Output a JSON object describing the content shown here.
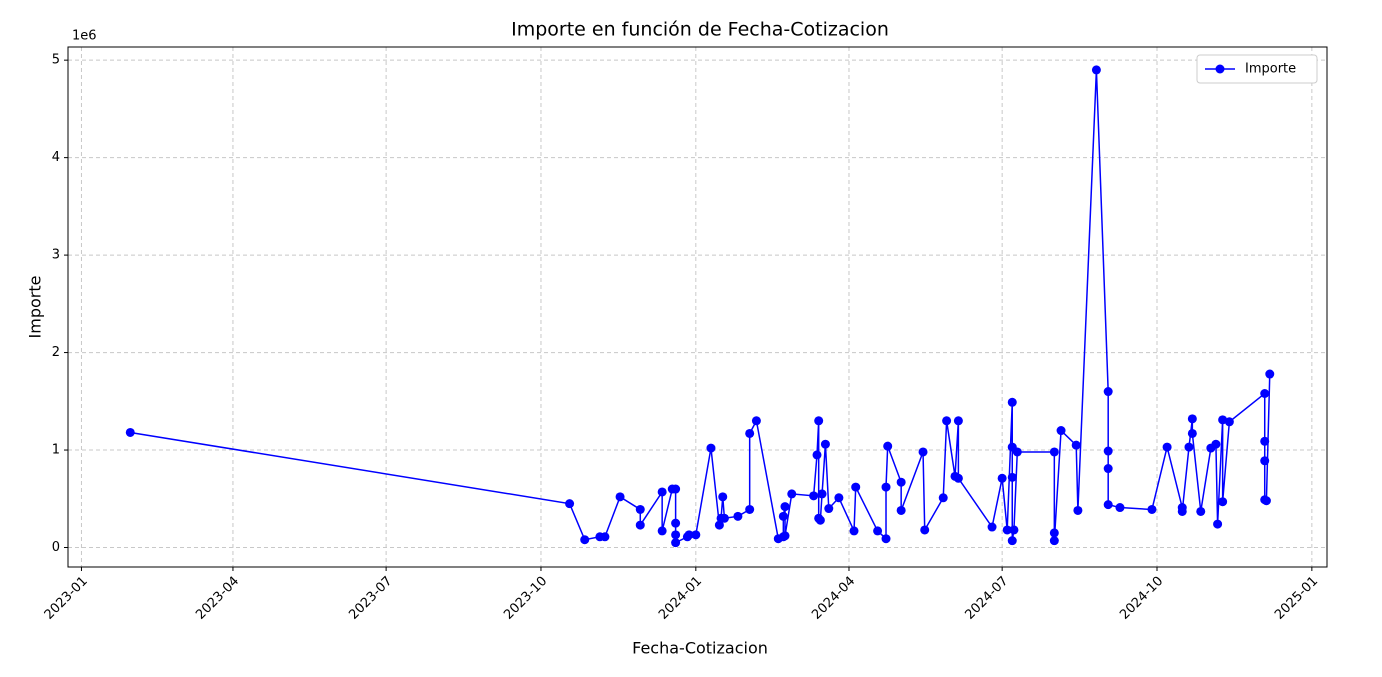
{
  "chart_data": {
    "type": "line",
    "title": "Importe en función de Fecha-Cotizacion",
    "x_label": "Fecha-Cotizacion",
    "y_label": "Importe",
    "y_offset_label": "1e6",
    "grid": true,
    "legend": "upper right",
    "xlim": [
      19350,
      20098
    ],
    "xticks": [
      {
        "value": 19358,
        "label": "2023-01"
      },
      {
        "value": 19448,
        "label": "2023-04"
      },
      {
        "value": 19539,
        "label": "2023-07"
      },
      {
        "value": 19631,
        "label": "2023-10"
      },
      {
        "value": 19723,
        "label": "2024-01"
      },
      {
        "value": 19814,
        "label": "2024-04"
      },
      {
        "value": 19905,
        "label": "2024-07"
      },
      {
        "value": 19997,
        "label": "2024-10"
      },
      {
        "value": 20089,
        "label": "2025-01"
      }
    ],
    "ylim": [
      -0.2,
      5.135
    ],
    "yticks": [
      0,
      1,
      2,
      3,
      4,
      5
    ],
    "x": [
      19387,
      19648,
      19657,
      19666,
      19669,
      19678,
      19690,
      19690,
      19703,
      19703,
      19709,
      19711,
      19711,
      19711,
      19711,
      19718,
      19719,
      19723,
      19732,
      19737,
      19738,
      19739,
      19740,
      19748,
      19755,
      19755,
      19759,
      19772,
      19775,
      19775,
      19776,
      19776,
      19780,
      19793,
      19795,
      19796,
      19796,
      19797,
      19798,
      19800,
      19802,
      19808,
      19817,
      19818,
      19831,
      19836,
      19836,
      19837,
      19845,
      19845,
      19858,
      19859,
      19870,
      19872,
      19877,
      19879,
      19879,
      19899,
      19905,
      19908,
      19911,
      19911,
      19911,
      19911,
      19912,
      19914,
      19936,
      19936,
      19936,
      19940,
      19949,
      19950,
      19961,
      19968,
      19968,
      19968,
      19968,
      19975,
      19994,
      20003,
      20012,
      20012,
      20016,
      20018,
      20018,
      20023,
      20029,
      20032,
      20033,
      20036,
      20036,
      20040,
      20061,
      20061,
      20061,
      20061,
      20062,
      20064
    ],
    "series": [
      {
        "name": "Importe",
        "color": "#0000ff",
        "values": [
          1.18,
          0.45,
          0.08,
          0.11,
          0.11,
          0.52,
          0.39,
          0.23,
          0.57,
          0.17,
          0.6,
          0.6,
          0.25,
          0.13,
          0.05,
          0.11,
          0.13,
          0.13,
          1.02,
          0.23,
          0.3,
          0.52,
          0.3,
          0.32,
          0.39,
          1.17,
          1.3,
          0.09,
          0.11,
          0.32,
          0.42,
          0.12,
          0.55,
          0.53,
          0.95,
          1.3,
          0.3,
          0.28,
          0.55,
          1.06,
          0.4,
          0.51,
          0.17,
          0.62,
          0.17,
          0.09,
          0.62,
          1.04,
          0.67,
          0.38,
          0.98,
          0.18,
          0.51,
          1.3,
          0.73,
          1.3,
          0.71,
          0.21,
          0.71,
          0.18,
          1.49,
          0.72,
          1.03,
          0.07,
          0.18,
          0.98,
          0.98,
          0.15,
          0.07,
          1.2,
          1.05,
          0.38,
          4.9,
          1.6,
          0.99,
          0.81,
          0.44,
          0.41,
          0.39,
          1.03,
          0.41,
          0.37,
          1.03,
          1.32,
          1.17,
          0.37,
          1.02,
          1.06,
          0.24,
          1.31,
          0.47,
          1.29,
          1.58,
          1.09,
          0.89,
          0.49,
          0.48,
          1.78
        ]
      }
    ]
  }
}
